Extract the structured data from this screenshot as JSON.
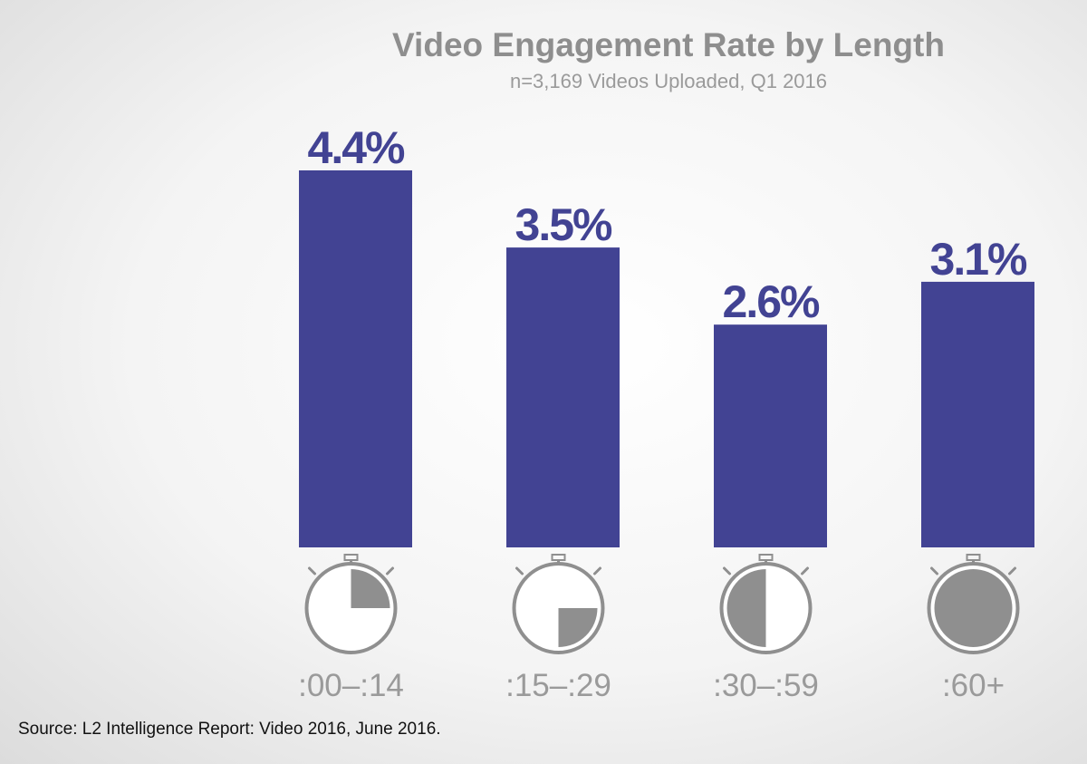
{
  "colors": {
    "bar": "#424393",
    "icon": "#8f8f8f",
    "title": "#8e8e8e",
    "source_text": "#111111"
  },
  "icon_names": [
    "stopwatch-icon"
  ],
  "chart_data": {
    "type": "bar",
    "title": "Video Engagement Rate by Length",
    "subtitle": "n=3,169 Videos Uploaded, Q1 2016",
    "categories": [
      ":00–:14",
      ":15–:29",
      ":30–:59",
      ":60+"
    ],
    "values": [
      4.4,
      3.5,
      2.6,
      3.1
    ],
    "value_labels": [
      "4.4%",
      "3.5%",
      "2.6%",
      "3.1%"
    ],
    "stopwatch_fill": [
      0.25,
      0.25,
      0.5,
      1.0
    ],
    "xlabel": "",
    "ylabel": "",
    "ylim": [
      0,
      4.4
    ],
    "grid": false,
    "legend": "none"
  },
  "source": "Source: L2 Intelligence Report: Video 2016, June 2016."
}
